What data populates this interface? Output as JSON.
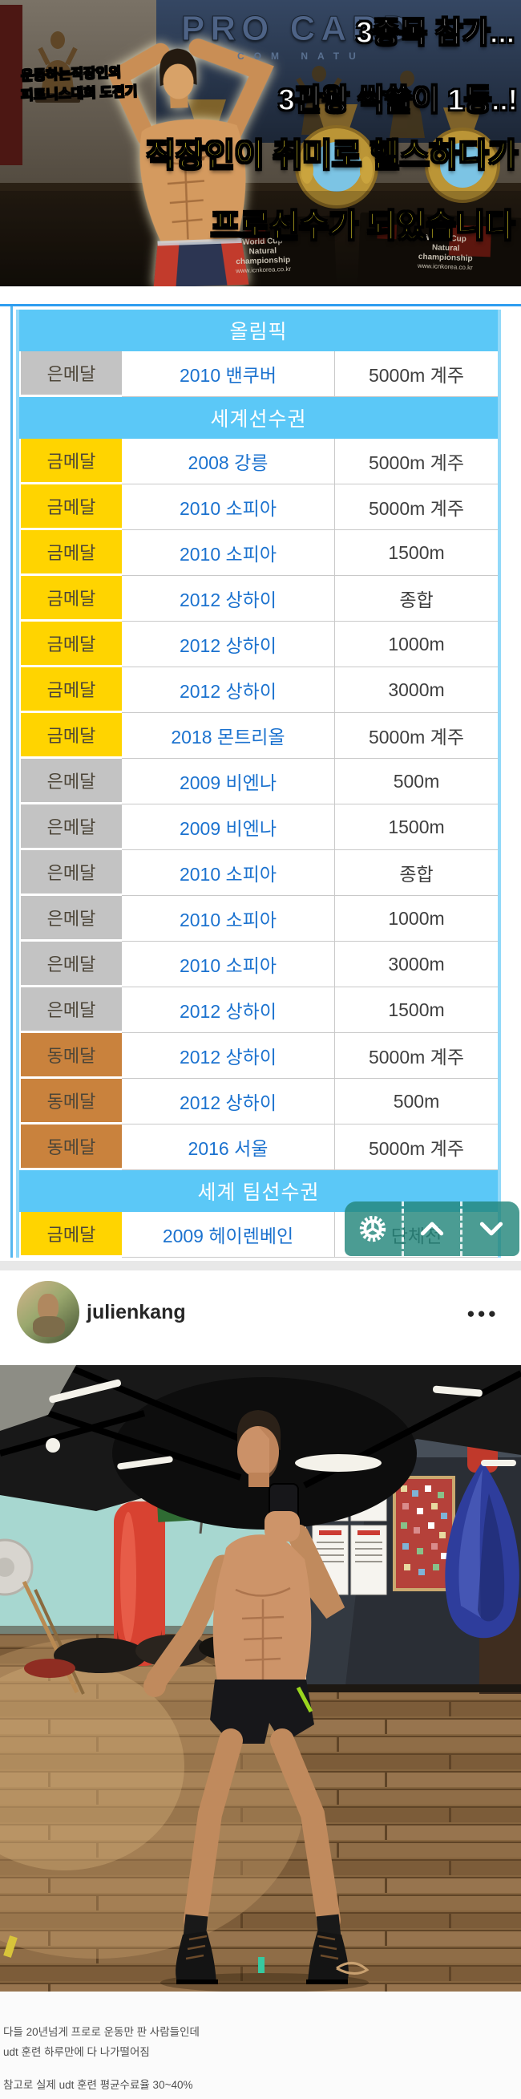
{
  "banner": {
    "pro_card": "PRO CARD",
    "pro_card_sub": "COM    NATU",
    "tag_line1": "운동하는직장인의",
    "tag_line2": "피트니스대회 도전기",
    "right_line1": "3종목 참가...",
    "right_line2": "3관왕 싹쓸이 1등..!",
    "yellow_line": "직장인이 취미로 헬스하다가",
    "bottom_line": "프로선수가 되었습니다",
    "board_line1": "World Cup",
    "board_line2": "Natural",
    "board_line3": "championship",
    "board_url": "www.icnkorea.co.kr"
  },
  "medal_table": {
    "colors": {
      "gold": "#FFD400",
      "silver": "#C3C3C3",
      "bronze": "#C9823D",
      "section_bg": "#5BC8F7",
      "event_text": "#1B72CF",
      "top_line": "#2E9DF0",
      "panel_teal": "rgba(35,134,123,0.82)"
    },
    "rows": [
      {
        "type": "section",
        "label": "올림픽"
      },
      {
        "type": "medal",
        "medal": "silver",
        "medal_label": "은메달",
        "event": "2010 밴쿠버",
        "discipline": "5000m 계주"
      },
      {
        "type": "section",
        "label": "세계선수권"
      },
      {
        "type": "medal",
        "medal": "gold",
        "medal_label": "금메달",
        "event": "2008 강릉",
        "discipline": "5000m 계주"
      },
      {
        "type": "medal",
        "medal": "gold",
        "medal_label": "금메달",
        "event": "2010 소피아",
        "discipline": "5000m 계주"
      },
      {
        "type": "medal",
        "medal": "gold",
        "medal_label": "금메달",
        "event": "2010 소피아",
        "discipline": "1500m"
      },
      {
        "type": "medal",
        "medal": "gold",
        "medal_label": "금메달",
        "event": "2012 상하이",
        "discipline": "종합"
      },
      {
        "type": "medal",
        "medal": "gold",
        "medal_label": "금메달",
        "event": "2012 상하이",
        "discipline": "1000m"
      },
      {
        "type": "medal",
        "medal": "gold",
        "medal_label": "금메달",
        "event": "2012 상하이",
        "discipline": "3000m"
      },
      {
        "type": "medal",
        "medal": "gold",
        "medal_label": "금메달",
        "event": "2018 몬트리올",
        "discipline": "5000m 계주"
      },
      {
        "type": "medal",
        "medal": "silver",
        "medal_label": "은메달",
        "event": "2009 비엔나",
        "discipline": "500m"
      },
      {
        "type": "medal",
        "medal": "silver",
        "medal_label": "은메달",
        "event": "2009 비엔나",
        "discipline": "1500m"
      },
      {
        "type": "medal",
        "medal": "silver",
        "medal_label": "은메달",
        "event": "2010 소피아",
        "discipline": "종합"
      },
      {
        "type": "medal",
        "medal": "silver",
        "medal_label": "은메달",
        "event": "2010 소피아",
        "discipline": "1000m"
      },
      {
        "type": "medal",
        "medal": "silver",
        "medal_label": "은메달",
        "event": "2010 소피아",
        "discipline": "3000m"
      },
      {
        "type": "medal",
        "medal": "silver",
        "medal_label": "은메달",
        "event": "2012 상하이",
        "discipline": "1500m"
      },
      {
        "type": "medal",
        "medal": "bronze",
        "medal_label": "동메달",
        "event": "2012 상하이",
        "discipline": "5000m 계주"
      },
      {
        "type": "medal",
        "medal": "bronze",
        "medal_label": "동메달",
        "event": "2012 상하이",
        "discipline": "500m"
      },
      {
        "type": "medal",
        "medal": "bronze",
        "medal_label": "동메달",
        "event": "2016 서울",
        "discipline": "5000m 계주"
      },
      {
        "type": "section",
        "label": "세계 팀선수권"
      },
      {
        "type": "medal",
        "medal": "gold",
        "medal_label": "금메달",
        "event": "2009 헤이렌베인",
        "discipline": "단체전"
      }
    ]
  },
  "toolbar": {
    "buttons": [
      {
        "icon": "gear-icon"
      },
      {
        "icon": "chevron-up-icon"
      },
      {
        "icon": "chevron-down-icon"
      }
    ]
  },
  "instagram": {
    "username": "julienkang",
    "more_menu": "●●●",
    "caption1": "다들 20년넘게 프로로 운동만 판 사람들인데",
    "caption2": "udt 훈련 하루만에 다 나가떨어짐",
    "caption3": "참고로 실제 udt 훈련 평균수료율 30~40%"
  }
}
